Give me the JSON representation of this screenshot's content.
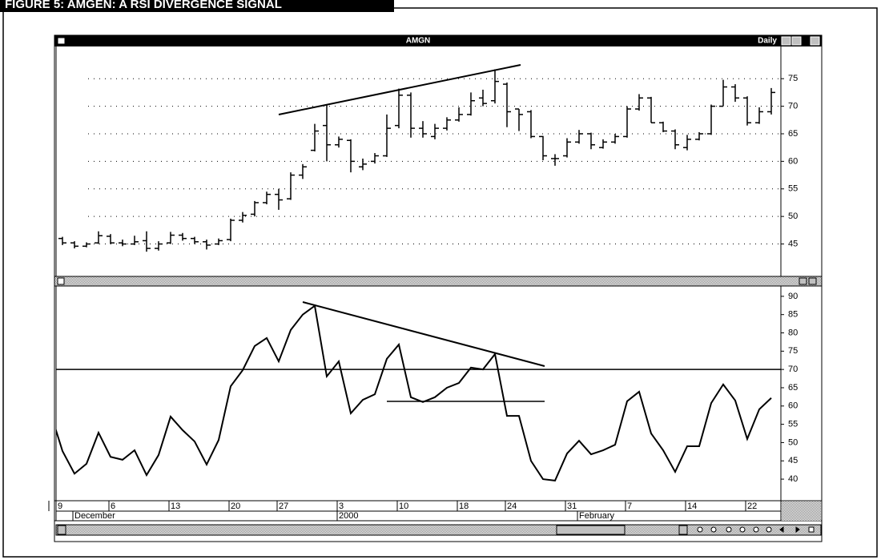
{
  "figure_title": "FIGURE 5: AMGEN: A RSI DIVERGENCE SIGNAL",
  "chart_data": [
    {
      "type": "ohlc",
      "title": "AMGN",
      "period": "Daily",
      "open": [
        47.5,
        46,
        45.2,
        44.6,
        45.2,
        46.4,
        45.2,
        45,
        45.6,
        44.2,
        45.2,
        46.6,
        46,
        45.4,
        45,
        45.8,
        49.3,
        50.4,
        52.5,
        54,
        53.2,
        57.5,
        62,
        66.5,
        63,
        63.8,
        59,
        60,
        61,
        66.5,
        72,
        66,
        64.5,
        66,
        67.5,
        68.5,
        71.5,
        71,
        74,
        69.5,
        69,
        64.5,
        60.5,
        61,
        63.5,
        65,
        62.5,
        63.5,
        64.5,
        69.5,
        71.5,
        67,
        65.5,
        62.5,
        64,
        65,
        70,
        73.5,
        71.5,
        67,
        69
      ],
      "high": [
        47.8,
        46.3,
        45.5,
        45.3,
        47.3,
        46.8,
        45.8,
        46.5,
        47.3,
        45.5,
        47.2,
        47,
        46.3,
        45.8,
        46,
        49.6,
        50.8,
        52.8,
        54.5,
        55,
        58,
        59.5,
        66.8,
        70.2,
        64.5,
        64,
        60.5,
        61.5,
        68.5,
        73.2,
        72.5,
        67.3,
        66.8,
        68,
        69.8,
        72.5,
        73,
        76.7,
        74.3,
        69.5,
        69.3,
        64.6,
        61.3,
        64.2,
        65.7,
        65.2,
        64,
        65,
        70,
        72.2,
        71.7,
        67.2,
        65.8,
        64.8,
        65.3,
        70.3,
        74.8,
        74,
        71.8,
        69.8,
        73.3
      ],
      "low": [
        45.8,
        44.8,
        44.2,
        44.4,
        45,
        45,
        44.6,
        44.8,
        43.6,
        43.8,
        45,
        45.6,
        45,
        44,
        44.8,
        45.5,
        48.9,
        50,
        52.2,
        51.2,
        53,
        56.8,
        61.8,
        60,
        62.5,
        58,
        58.4,
        59.6,
        60.8,
        66,
        64.3,
        64.3,
        64,
        65.6,
        67.2,
        68.3,
        70,
        70.5,
        66.2,
        65.5,
        64.2,
        60.2,
        59.2,
        60.7,
        63.2,
        62.2,
        62.3,
        63.2,
        64.3,
        69.2,
        67,
        65.3,
        62.2,
        62,
        63.8,
        64.8,
        70,
        70.8,
        66.5,
        66.8,
        68.5
      ],
      "close": [
        46,
        45.2,
        44.6,
        45,
        46.5,
        45.2,
        45,
        45.4,
        44.2,
        45,
        46.6,
        46,
        45.4,
        44.8,
        45.6,
        49.3,
        50.2,
        52.5,
        54,
        53,
        57.5,
        59,
        65.5,
        63,
        64,
        60,
        59.5,
        61,
        66,
        72,
        66,
        65,
        66,
        67.5,
        68.5,
        71,
        70.5,
        74.5,
        69,
        68.5,
        64.5,
        61,
        60.5,
        63.5,
        65,
        63,
        63.5,
        64.5,
        69.5,
        71.5,
        67,
        65.5,
        63,
        64,
        65,
        70,
        73.5,
        71.5,
        67,
        69,
        72.5
      ],
      "color": "#000000",
      "ylim": [
        39.7,
        80.7
      ],
      "yticks": [
        45,
        50,
        55,
        60,
        65,
        70,
        75
      ],
      "grid": true
    },
    {
      "type": "line",
      "categories": [
        "9",
        null,
        null,
        null,
        null,
        "6",
        null,
        null,
        null,
        null,
        "13",
        null,
        null,
        null,
        null,
        "20",
        null,
        null,
        null,
        "27",
        null,
        null,
        null,
        null,
        "3",
        null,
        null,
        null,
        null,
        "10",
        null,
        null,
        null,
        null,
        "18",
        null,
        null,
        null,
        "24",
        null,
        null,
        null,
        null,
        "31",
        null,
        null,
        null,
        null,
        "7",
        null,
        null,
        null,
        null,
        "14",
        null,
        null,
        null,
        null,
        "22",
        null,
        null
      ],
      "months": [
        null,
        null,
        "December",
        null,
        null,
        null,
        null,
        null,
        null,
        null,
        null,
        null,
        null,
        null,
        null,
        null,
        null,
        null,
        null,
        null,
        null,
        null,
        null,
        null,
        "2000",
        null,
        null,
        null,
        null,
        null,
        null,
        null,
        null,
        null,
        null,
        null,
        null,
        null,
        null,
        null,
        null,
        null,
        null,
        null,
        "February",
        null,
        null,
        null,
        null,
        null,
        null,
        null,
        null,
        null,
        null,
        null,
        null,
        null,
        null,
        null,
        null
      ],
      "series": [
        {
          "color": "#000000",
          "values": [
            58.2,
            47.7,
            41.5,
            44.2,
            52.7,
            46.1,
            45.3,
            47.9,
            41.1,
            46.6,
            57.1,
            53.4,
            50.3,
            44.0,
            50.7,
            65.4,
            69.8,
            76.4,
            78.6,
            72.2,
            80.8,
            85,
            87.4,
            68.1,
            72.2,
            58.0,
            61.7,
            63.2,
            72.9,
            76.8,
            62.4,
            61.1,
            62.4,
            65.0,
            66.3,
            70.5,
            70.0,
            74.2,
            57.3,
            57.3,
            45.0,
            40.0,
            39.6,
            47.0,
            50.5,
            46.8,
            47.9,
            49.4,
            61.3,
            63.9,
            52.5,
            47.9,
            42.0,
            49.0,
            49.0,
            60.8,
            65.9,
            61.5,
            51.0,
            59.1,
            62.2
          ]
        }
      ],
      "reference_line": 70,
      "ylim": [
        34.1,
        92.6
      ],
      "yticks": [
        40,
        45,
        50,
        55,
        60,
        65,
        70,
        75,
        80,
        85,
        90
      ]
    }
  ]
}
